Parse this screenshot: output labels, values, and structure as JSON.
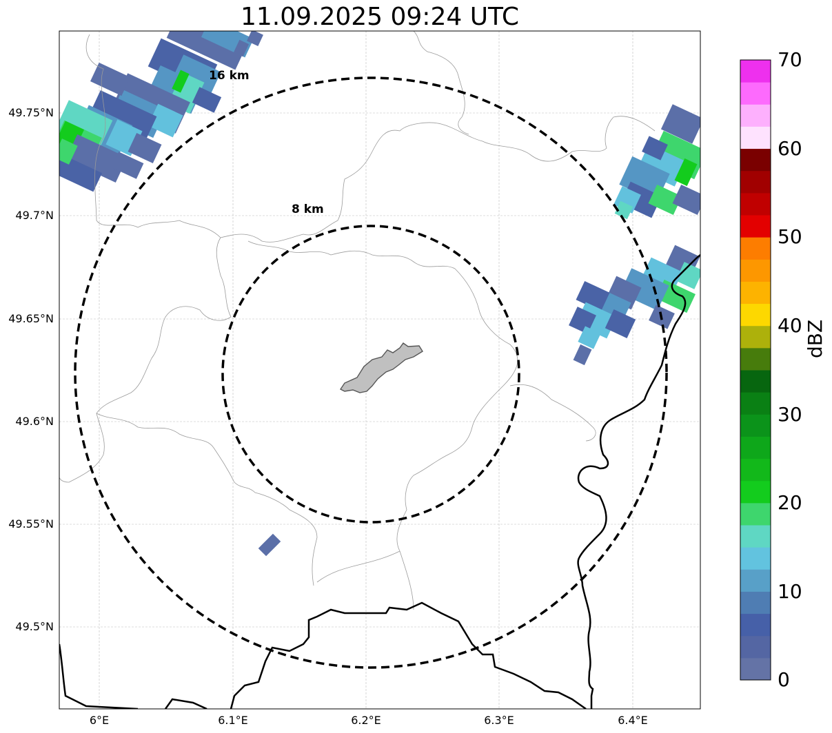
{
  "title": "11.09.2025 09:24 UTC",
  "map": {
    "lat_ticks": [
      "49.75°N",
      "49.7°N",
      "49.65°N",
      "49.6°N",
      "49.55°N",
      "49.5°N"
    ],
    "lon_ticks": [
      "6°E",
      "6.1°E",
      "6.2°E",
      "6.3°E",
      "6.4°E"
    ],
    "range_rings": [
      {
        "label": "8 km",
        "radius_km": 8
      },
      {
        "label": "16 km",
        "radius_km": 16
      }
    ],
    "colors": {
      "ring": "#000000",
      "border": "#000000",
      "admin": "#9a9a9a",
      "site_fill": "#c0c0c0",
      "grid": "#bbbbbb"
    }
  },
  "colorbar": {
    "unit": "dBZ",
    "ticks": [
      "0",
      "10",
      "20",
      "30",
      "40",
      "50",
      "60",
      "70"
    ],
    "colors": [
      "#6473a6",
      "#5466a3",
      "#4660a8",
      "#4f7db3",
      "#58a0c8",
      "#62c3df",
      "#5fd7c3",
      "#3ed66d",
      "#13cc1d",
      "#12b81a",
      "#0ea71a",
      "#0b931a",
      "#0a8014",
      "#07660f",
      "#477c0c",
      "#adb10b",
      "#fdd800",
      "#fdb300",
      "#fd9700",
      "#fd7d00",
      "#e30000",
      "#c00000",
      "#a10000",
      "#7a0000",
      "#fee2fe",
      "#fdb0fd",
      "#fd6afd",
      "#ee30ee"
    ]
  },
  "echo_colors": {
    "c1": "#5b6fa8",
    "c2": "#4a63a6",
    "c3": "#5596c4",
    "c4": "#62c1dd",
    "c5": "#5fd7c3",
    "c6": "#3ed66d",
    "c7": "#13cc1d"
  }
}
